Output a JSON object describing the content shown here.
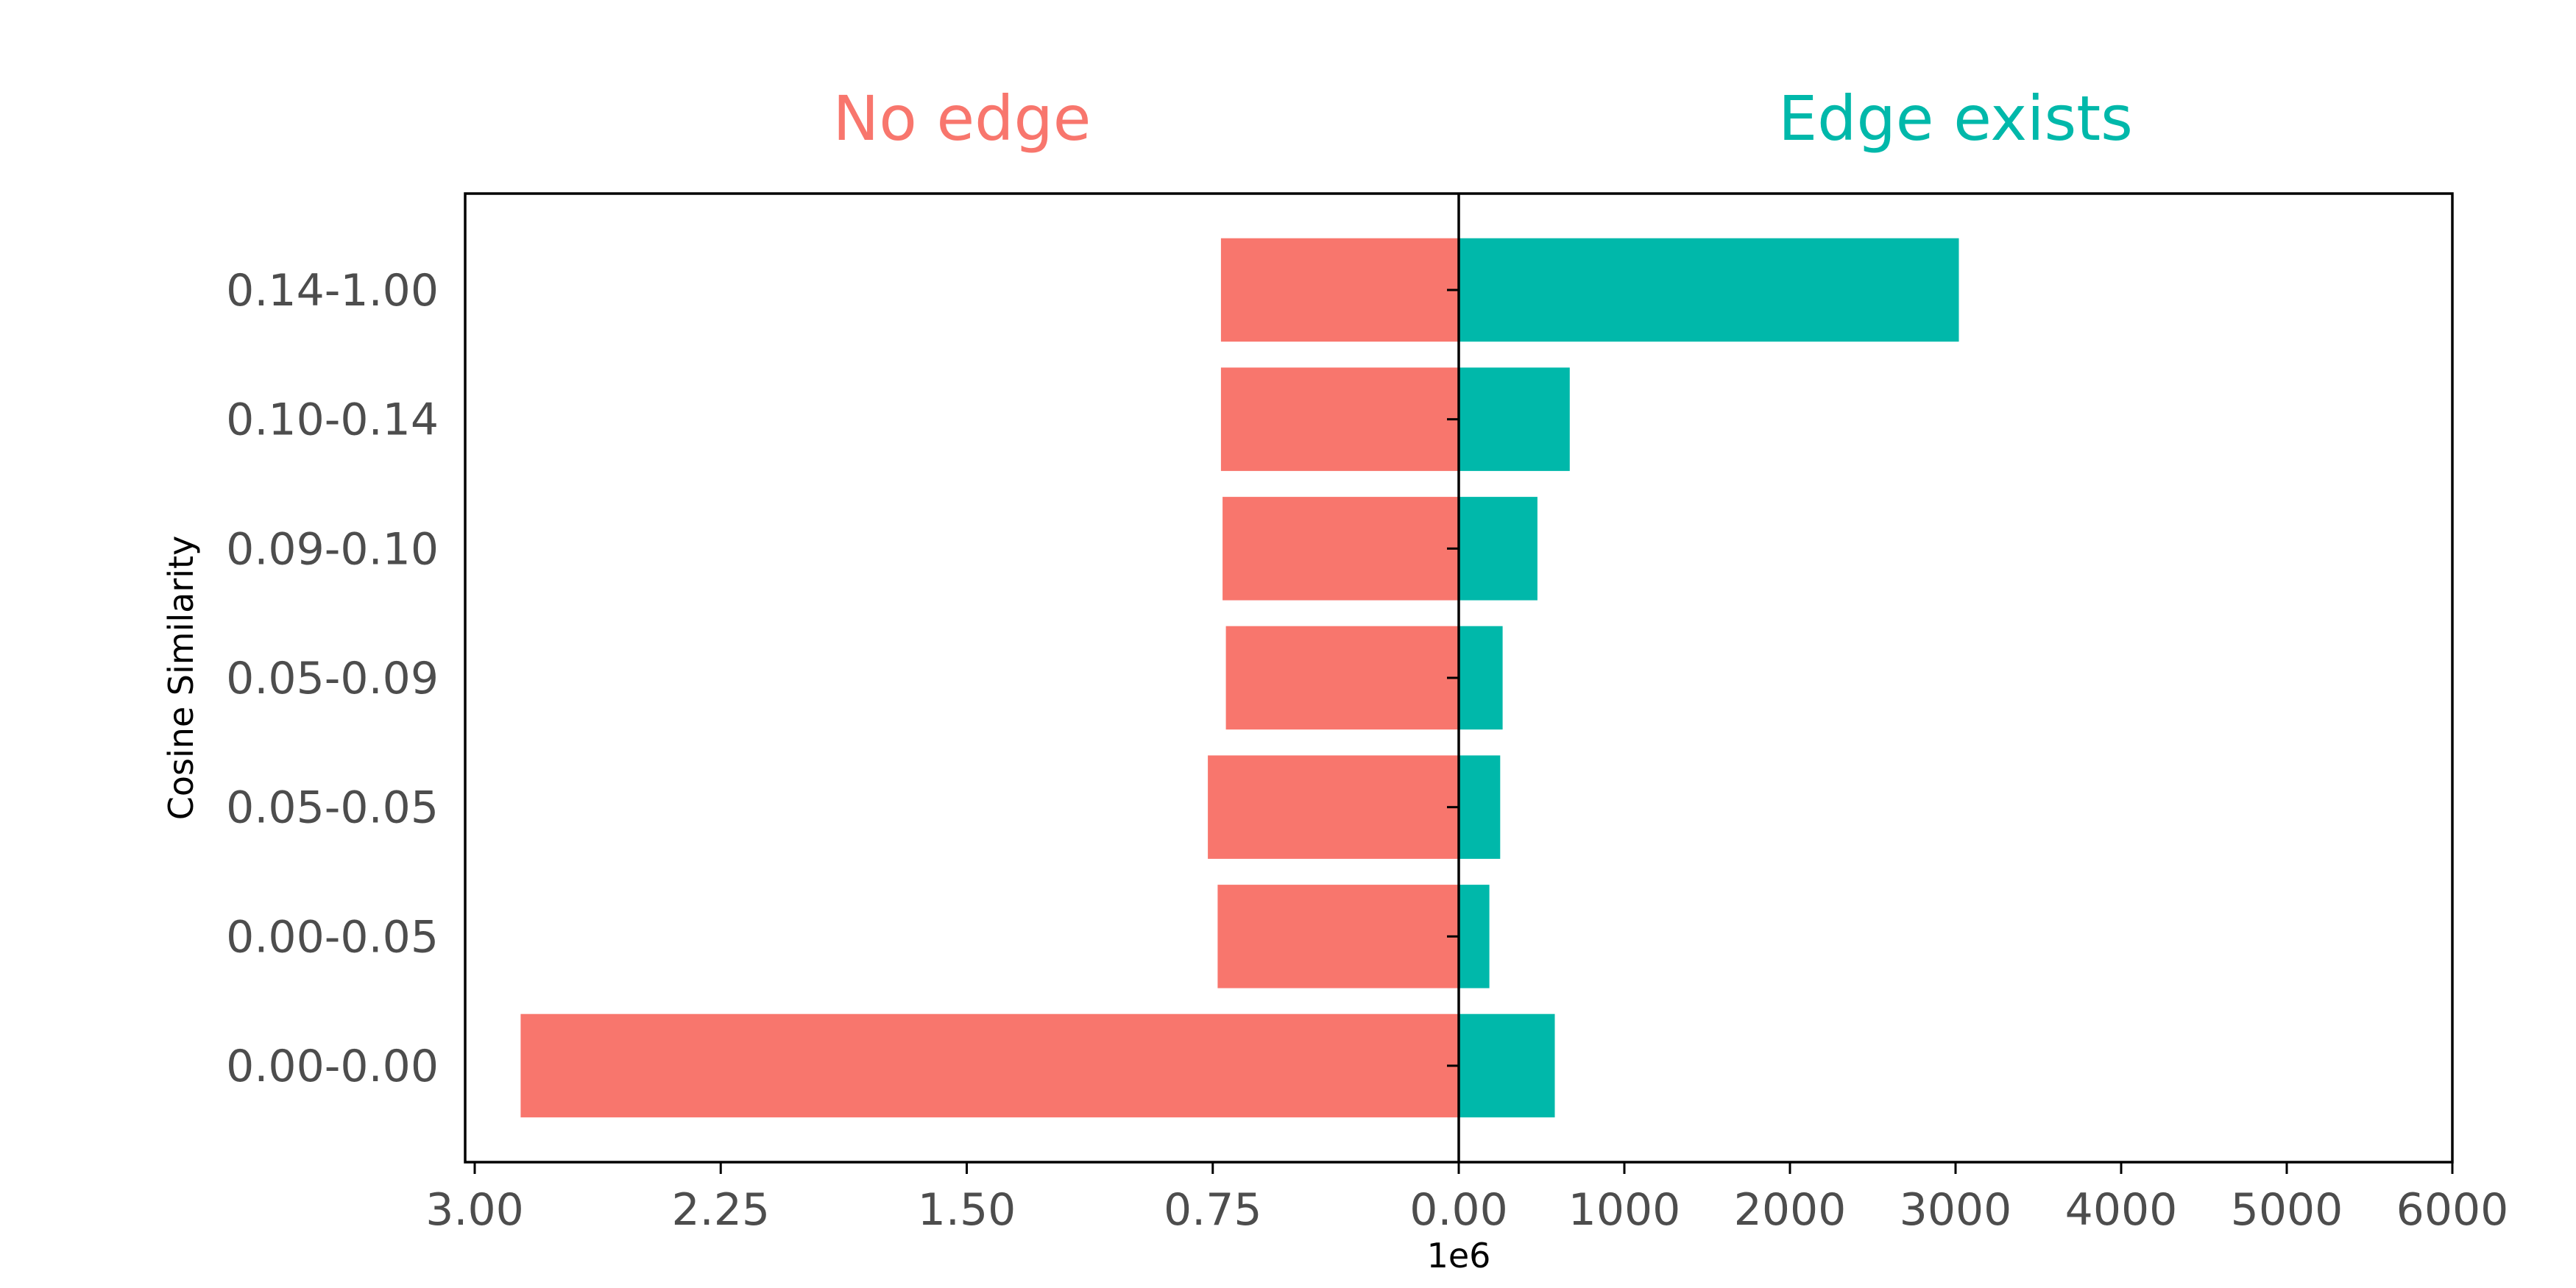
{
  "chart_data": {
    "type": "bar",
    "orientation": "horizontal",
    "layout": "back-to-back",
    "ylabel": "Cosine Similarity",
    "categories": [
      "0.00-0.00",
      "0.00-0.05",
      "0.05-0.05",
      "0.05-0.09",
      "0.09-0.10",
      "0.10-0.14",
      "0.14-1.00"
    ],
    "panels": [
      {
        "name": "No edge",
        "color": "#F8766D",
        "direction": "left",
        "values": [
          2860000,
          735000,
          765000,
          710000,
          720000,
          725000,
          725000
        ],
        "xlim": [
          0,
          3000000
        ],
        "xticks": [
          3.0,
          2.25,
          1.5,
          0.75,
          0.0
        ],
        "xtick_labels": [
          "3.00",
          "2.25",
          "1.50",
          "0.75",
          "0.00"
        ],
        "offset_label": "1e6"
      },
      {
        "name": "Edge exists",
        "color": "#00B8AA",
        "direction": "right",
        "values": [
          580,
          185,
          250,
          265,
          475,
          670,
          3020
        ],
        "xlim": [
          0,
          6000
        ],
        "xticks": [
          1000,
          2000,
          3000,
          4000,
          5000,
          6000
        ],
        "xtick_labels": [
          "1000",
          "2000",
          "3000",
          "4000",
          "5000",
          "6000"
        ]
      }
    ],
    "grid": false,
    "legend": "none"
  }
}
